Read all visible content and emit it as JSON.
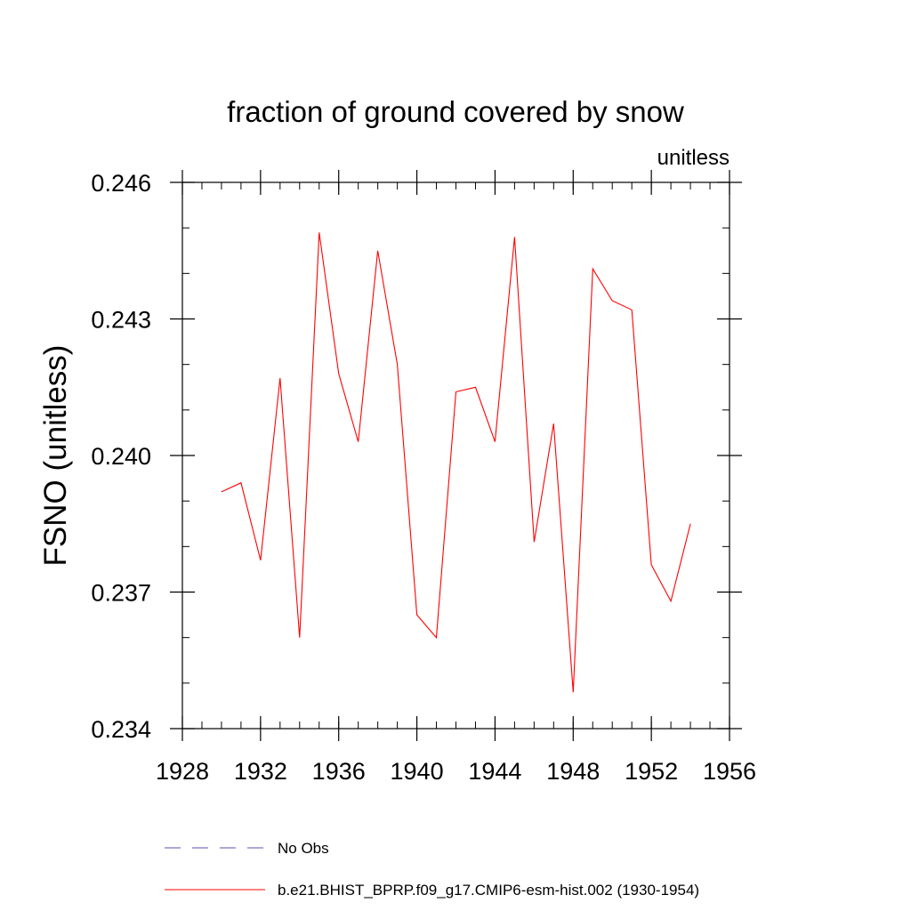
{
  "chart_data": {
    "type": "line",
    "title": "fraction of ground covered by snow",
    "units_label": "unitless",
    "ylabel": "FSNO  (unitless)",
    "xlabel": "",
    "xlim": [
      1928,
      1956
    ],
    "ylim": [
      0.234,
      0.246
    ],
    "x_ticks": [
      1928,
      1932,
      1936,
      1940,
      1944,
      1948,
      1952,
      1956
    ],
    "x_tick_labels": [
      "1928",
      "1932",
      "1936",
      "1940",
      "1944",
      "1948",
      "1952",
      "1956"
    ],
    "y_ticks": [
      0.234,
      0.237,
      0.24,
      0.243,
      0.246
    ],
    "y_tick_labels": [
      "0.234",
      "0.237",
      "0.240",
      "0.243",
      "0.246"
    ],
    "y_minor_step": 0.001,
    "x_minor_step": 1,
    "grid": false,
    "series": [
      {
        "name": "b.e21.BHIST_BPRP.f09_g17.CMIP6-esm-hist.002 (1930-1954)",
        "color": "#ff0000",
        "dash": "solid",
        "x": [
          1930,
          1931,
          1932,
          1933,
          1934,
          1935,
          1936,
          1937,
          1938,
          1939,
          1940,
          1941,
          1942,
          1943,
          1944,
          1945,
          1946,
          1947,
          1948,
          1949,
          1950,
          1951,
          1952,
          1953,
          1954
        ],
        "values": [
          0.2392,
          0.2394,
          0.2377,
          0.2417,
          0.236,
          0.2449,
          0.2418,
          0.2403,
          0.2445,
          0.242,
          0.2365,
          0.236,
          0.2414,
          0.2415,
          0.2403,
          0.2448,
          0.2381,
          0.2407,
          0.2348,
          0.2441,
          0.2434,
          0.2432,
          0.2376,
          0.2368,
          0.2385
        ]
      }
    ],
    "legend": {
      "placement": "bottom",
      "entries": [
        {
          "label": "No Obs",
          "color": "#5a50b4",
          "dash": "dashed"
        },
        {
          "label": "b.e21.BHIST_BPRP.f09_g17.CMIP6-esm-hist.002 (1930-1954)",
          "color": "#ff0000",
          "dash": "solid"
        }
      ]
    }
  }
}
